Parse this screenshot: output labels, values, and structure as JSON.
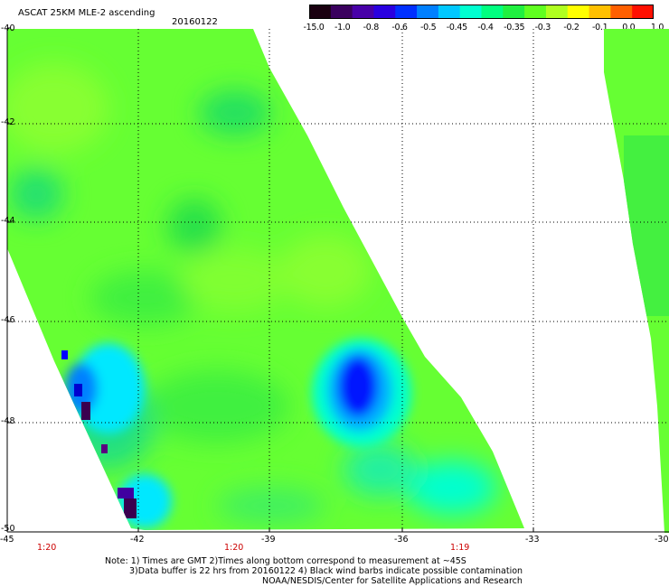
{
  "title": "ASCAT 25KM MLE-2 ascending",
  "date": "20160122",
  "colorbar": {
    "labels": [
      "-15.0",
      "-1.0",
      "-0.8",
      "-0.6",
      "-0.5",
      "-0.45",
      "-0.4",
      "-0.35",
      "-0.3",
      "-0.2",
      "-0.1",
      "0.0",
      "1.0"
    ],
    "colors": [
      "#1a0010",
      "#3a005e",
      "#4800a8",
      "#2a00e0",
      "#0030ff",
      "#0080ff",
      "#00c8ff",
      "#00ffd0",
      "#00ff80",
      "#20f040",
      "#60ff20",
      "#b0ff20",
      "#ffff00",
      "#ffc000",
      "#ff6000",
      "#ff1000"
    ]
  },
  "axes": {
    "lat_labels": [
      "-40",
      "-42",
      "-44",
      "-46",
      "-48",
      "-50"
    ],
    "lon_labels": [
      "-45",
      "-42",
      "-39",
      "-36",
      "-33",
      "-30"
    ]
  },
  "times": [
    "1:20",
    "1:20",
    "1:19"
  ],
  "notes": {
    "line1": "Note: 1) Times are GMT 2)Times along bottom correspond to measurement at ~45S",
    "line2": "3)Data buffer is 22 hrs from 20160122 4) Black wind barbs indicate possible contamination",
    "line3": "NOAA/NESDIS/Center for Satellite Applications and Research"
  }
}
